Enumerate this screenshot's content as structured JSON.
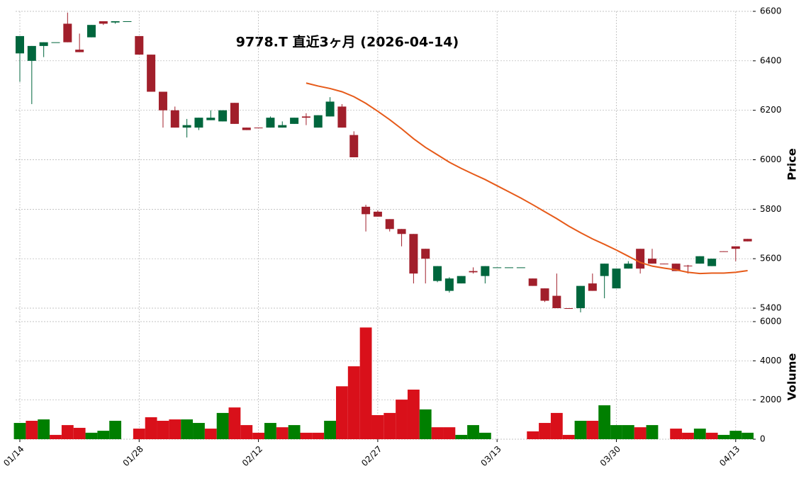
{
  "chart_data": {
    "type": "candlestick",
    "title": "9778.T  直近3ヶ月  (2026-04-14)",
    "categories": [
      "01/14",
      null,
      null,
      null,
      null,
      null,
      null,
      null,
      null,
      null,
      "01/28",
      null,
      null,
      null,
      null,
      null,
      null,
      null,
      null,
      null,
      "02/12",
      null,
      null,
      null,
      null,
      null,
      null,
      null,
      null,
      null,
      "02/27",
      null,
      null,
      null,
      null,
      null,
      null,
      null,
      null,
      null,
      "03/13",
      null,
      null,
      null,
      null,
      null,
      null,
      null,
      null,
      null,
      "03/30",
      null,
      null,
      null,
      null,
      null,
      null,
      null,
      null,
      null,
      "04/13",
      null
    ],
    "open": [
      6430,
      6400,
      6460,
      6475,
      6550,
      6445,
      6495,
      6560,
      6555,
      6560,
      6500,
      6425,
      6275,
      6200,
      6130,
      6130,
      6160,
      6155,
      6230,
      6130,
      6130,
      6130,
      6130,
      6145,
      6175,
      6130,
      6175,
      6215,
      6100,
      5810,
      5790,
      5760,
      5720,
      5700,
      5640,
      5510,
      5470,
      5500,
      5550,
      5530,
      5565,
      5565,
      5565,
      5520,
      5480,
      5450,
      5400,
      5400,
      5500,
      5530,
      5480,
      5560,
      5640,
      5600,
      5580,
      5580,
      5572,
      5580,
      5570,
      5630,
      5650,
      5680
    ],
    "high": [
      6500,
      6460,
      6475,
      6475,
      6595,
      6510,
      6545,
      6560,
      6560,
      6560,
      6500,
      6425,
      6275,
      6215,
      6165,
      6170,
      6200,
      6200,
      6230,
      6130,
      6130,
      6175,
      6155,
      6170,
      6188,
      6180,
      6253,
      6225,
      6115,
      5818,
      5795,
      5760,
      5720,
      5700,
      5640,
      5570,
      5525,
      5530,
      5565,
      5570,
      5565,
      5565,
      5565,
      5520,
      5480,
      5540,
      5400,
      5490,
      5540,
      5580,
      5560,
      5590,
      5640,
      5640,
      5580,
      5580,
      5575,
      5610,
      5600,
      5630,
      5650,
      5680
    ],
    "low": [
      6315,
      6225,
      6415,
      6475,
      6475,
      6435,
      6495,
      6545,
      6550,
      6560,
      6425,
      6275,
      6130,
      6130,
      6090,
      6120,
      6160,
      6155,
      6145,
      6120,
      6128,
      6130,
      6130,
      6145,
      6140,
      6130,
      6175,
      6130,
      6010,
      5710,
      5770,
      5710,
      5650,
      5500,
      5500,
      5505,
      5463,
      5500,
      5540,
      5500,
      5565,
      5565,
      5565,
      5490,
      5425,
      5400,
      5398,
      5383,
      5470,
      5440,
      5480,
      5560,
      5540,
      5580,
      5578,
      5550,
      5540,
      5580,
      5570,
      5628,
      5590,
      5670
    ],
    "close": [
      6500,
      6460,
      6475,
      6475,
      6475,
      6435,
      6545,
      6550,
      6560,
      6560,
      6425,
      6275,
      6200,
      6130,
      6140,
      6170,
      6170,
      6200,
      6145,
      6120,
      6128,
      6170,
      6140,
      6170,
      6170,
      6180,
      6235,
      6130,
      6010,
      5780,
      5770,
      5720,
      5700,
      5540,
      5600,
      5570,
      5520,
      5530,
      5545,
      5570,
      5565,
      5565,
      5565,
      5490,
      5430,
      5400,
      5398,
      5490,
      5470,
      5580,
      5560,
      5580,
      5560,
      5580,
      5578,
      5550,
      5570,
      5610,
      5600,
      5628,
      5640,
      5670
    ],
    "up_color": "#00663d",
    "down_color": "#a11f2b",
    "ma": {
      "color": "#e65a19",
      "values": [
        null,
        null,
        null,
        null,
        null,
        null,
        null,
        null,
        null,
        null,
        null,
        null,
        null,
        null,
        null,
        null,
        null,
        null,
        null,
        null,
        null,
        null,
        null,
        null,
        6310,
        6298,
        6288,
        6275,
        6255,
        6228,
        6196,
        6162,
        6125,
        6085,
        6050,
        6020,
        5990,
        5965,
        5942,
        5920,
        5895,
        5870,
        5845,
        5818,
        5790,
        5762,
        5732,
        5705,
        5680,
        5658,
        5635,
        5610,
        5585,
        5570,
        5562,
        5555,
        5545,
        5540,
        5542,
        5542,
        5545,
        5552
      ]
    },
    "ylabel": "Price",
    "ylim": [
      5370,
      6600
    ],
    "yticks": [
      5400,
      5600,
      5800,
      6000,
      6200,
      6400,
      6600
    ],
    "volume": {
      "ylabel": "Volume",
      "ylim": [
        0,
        6000
      ],
      "yticks": [
        0,
        2000,
        4000,
        6000
      ],
      "values": [
        830,
        940,
        1010,
        220,
        720,
        580,
        330,
        430,
        940,
        null,
        540,
        1120,
        940,
        1010,
        1010,
        830,
        540,
        1340,
        1620,
        720,
        330,
        830,
        610,
        720,
        330,
        330,
        940,
        2700,
        3720,
        5700,
        1230,
        1340,
        2020,
        2530,
        1520,
        610,
        610,
        220,
        720,
        330,
        null,
        null,
        null,
        400,
        830,
        1340,
        220,
        940,
        940,
        1730,
        720,
        720,
        610,
        720,
        null,
        540,
        330,
        540,
        330,
        220,
        430,
        330
      ],
      "colors": [
        "#007f00",
        "#d9101a",
        "#007f00",
        "#d9101a",
        "#d9101a",
        "#d9101a",
        "#007f00",
        "#007f00",
        "#007f00",
        null,
        "#d9101a",
        "#d9101a",
        "#d9101a",
        "#d9101a",
        "#007f00",
        "#007f00",
        "#d9101a",
        "#007f00",
        "#d9101a",
        "#d9101a",
        "#d9101a",
        "#007f00",
        "#d9101a",
        "#007f00",
        "#d9101a",
        "#d9101a",
        "#007f00",
        "#d9101a",
        "#d9101a",
        "#d9101a",
        "#d9101a",
        "#d9101a",
        "#d9101a",
        "#d9101a",
        "#007f00",
        "#d9101a",
        "#d9101a",
        "#007f00",
        "#007f00",
        "#007f00",
        null,
        null,
        null,
        "#d9101a",
        "#d9101a",
        "#d9101a",
        "#d9101a",
        "#007f00",
        "#d9101a",
        "#007f00",
        "#007f00",
        "#007f00",
        "#d9101a",
        "#007f00",
        null,
        "#d9101a",
        "#d9101a",
        "#007f00",
        "#d9101a",
        "#007f00",
        "#007f00",
        "#007f00"
      ]
    },
    "grid": true
  }
}
